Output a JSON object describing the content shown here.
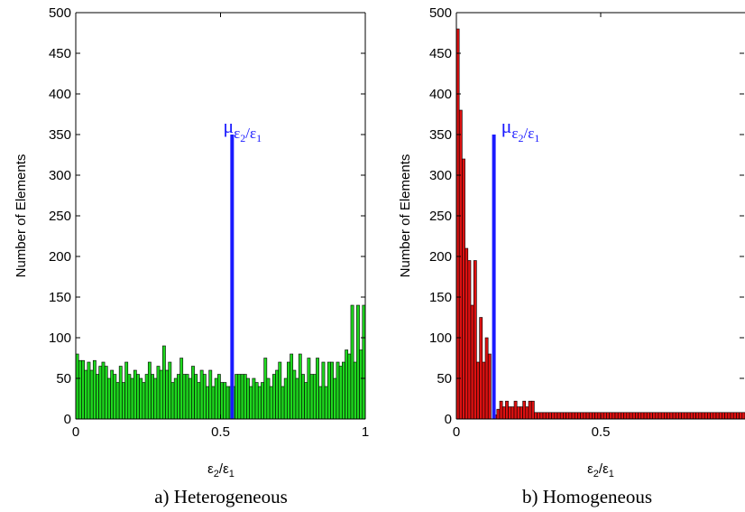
{
  "chart_data": [
    {
      "type": "bar",
      "caption": "a) Heterogeneous",
      "ylabel": "Number of Elements",
      "xlabel": "ε2/ε1",
      "xlim": [
        0,
        1
      ],
      "ylim": [
        0,
        500
      ],
      "xticks": [
        "0",
        "0.5",
        "1"
      ],
      "yticks": [
        "0",
        "50",
        "100",
        "150",
        "200",
        "250",
        "300",
        "350",
        "400",
        "450",
        "500"
      ],
      "bar_color": "#1ed81e",
      "bin_width": 0.01,
      "values": [
        80,
        72,
        72,
        60,
        70,
        60,
        72,
        55,
        65,
        70,
        65,
        50,
        60,
        55,
        45,
        65,
        45,
        70,
        55,
        50,
        60,
        55,
        50,
        45,
        55,
        70,
        55,
        50,
        65,
        60,
        90,
        60,
        70,
        45,
        50,
        55,
        75,
        55,
        55,
        50,
        65,
        55,
        45,
        60,
        55,
        40,
        60,
        40,
        50,
        55,
        45,
        45,
        40,
        40,
        40,
        55,
        55,
        55,
        55,
        50,
        40,
        50,
        45,
        40,
        45,
        75,
        50,
        40,
        55,
        60,
        70,
        40,
        50,
        70,
        80,
        60,
        50,
        80,
        55,
        45,
        75,
        55,
        55,
        75,
        40,
        70,
        40,
        70,
        70,
        50,
        70,
        65,
        70,
        85,
        80,
        140,
        70,
        140,
        85,
        140
      ],
      "mean_line": {
        "x": 0.54,
        "y_top": 350,
        "label": "μ",
        "label_sub": "ε2/ε1",
        "color": "#1a1aff"
      }
    },
    {
      "type": "bar",
      "caption": "b) Homogeneous",
      "ylabel": "Number of Elements",
      "xlabel": "ε2/ε1",
      "xlim": [
        0,
        1
      ],
      "ylim": [
        0,
        500
      ],
      "xticks": [
        "0",
        "0.5"
      ],
      "yticks": [
        "0",
        "50",
        "100",
        "150",
        "200",
        "250",
        "300",
        "350",
        "400",
        "450",
        "500"
      ],
      "bar_color": "#dd1111",
      "bin_width": 0.01,
      "values": [
        480,
        380,
        320,
        210,
        195,
        140,
        195,
        70,
        125,
        70,
        100,
        80,
        0,
        5,
        12,
        22,
        15,
        22,
        15,
        15,
        22,
        15,
        15,
        22,
        15,
        22,
        22,
        8,
        8,
        8,
        8,
        8,
        8,
        8,
        8,
        8,
        8,
        8,
        8,
        8,
        8,
        8,
        8,
        8,
        8,
        8,
        8,
        8,
        8,
        8,
        8,
        8,
        8,
        8,
        8,
        8,
        8,
        8,
        8,
        8,
        8,
        8,
        8,
        8,
        8,
        8,
        8,
        8,
        8,
        8,
        8,
        8,
        8,
        8,
        8,
        8,
        8,
        8,
        8,
        8,
        8,
        8,
        8,
        8,
        8,
        8,
        8,
        8,
        8,
        8,
        8,
        8,
        8,
        8,
        8,
        8,
        8,
        8,
        8,
        8
      ],
      "mean_line": {
        "x": 0.13,
        "y_top": 350,
        "label": "μ",
        "label_sub": "ε2/ε1",
        "color": "#1a1aff"
      }
    }
  ]
}
